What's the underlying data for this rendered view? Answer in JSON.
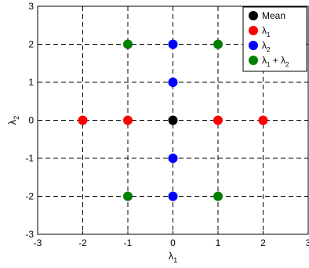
{
  "chart_data": {
    "type": "scatter",
    "xlabel": "λ",
    "xlabel_sub": "1",
    "ylabel": "λ",
    "ylabel_sub": "2",
    "xlim": [
      -3,
      3
    ],
    "ylim": [
      -3,
      3
    ],
    "xticks": [
      "-3",
      "-2",
      "-1",
      "0",
      "1",
      "2",
      "3"
    ],
    "yticks": [
      "-3",
      "-2",
      "-1",
      "0",
      "1",
      "2",
      "3"
    ],
    "grid": true,
    "grid_style": "dashed",
    "legend_position": "top-right",
    "legend": [
      {
        "label": "Mean",
        "color": "#000000"
      },
      {
        "label": "λ",
        "sub": "1",
        "color": "#ff0000"
      },
      {
        "label": "λ",
        "sub": "2",
        "color": "#0000ff"
      },
      {
        "label": "λ",
        "sub": "1",
        "mid": " + λ",
        "sub2": "2",
        "color": "#008000"
      }
    ],
    "series": [
      {
        "color": "#000000",
        "points": [
          [
            0,
            0
          ]
        ]
      },
      {
        "color": "#ff0000",
        "points": [
          [
            -2,
            0
          ],
          [
            -1,
            0
          ],
          [
            1,
            0
          ],
          [
            2,
            0
          ]
        ]
      },
      {
        "color": "#0000ff",
        "points": [
          [
            0,
            2
          ],
          [
            0,
            1
          ],
          [
            0,
            -1
          ],
          [
            0,
            -2
          ]
        ]
      },
      {
        "color": "#008000",
        "points": [
          [
            -1,
            2
          ],
          [
            1,
            2
          ],
          [
            -1,
            -2
          ],
          [
            1,
            -2
          ]
        ]
      }
    ]
  }
}
